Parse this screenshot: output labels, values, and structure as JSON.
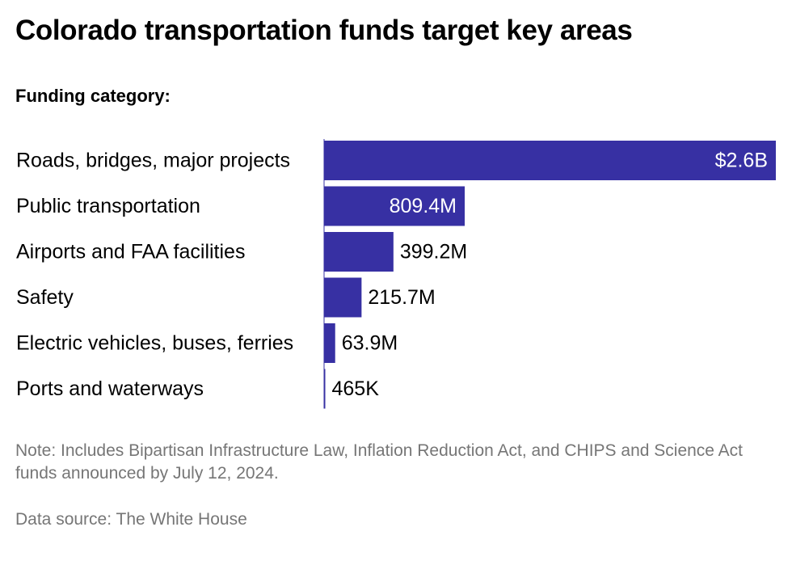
{
  "title": "Colorado transportation funds target key areas",
  "subtitle": "Funding category:",
  "note": "Note: Includes Bipartisan Infrastructure Law, Inflation Reduction Act, and CHIPS and Science Act funds announced by July 12, 2024.",
  "source": "Data source: The White House",
  "colors": {
    "bar": "#3730a3",
    "label_inside": "#ffffff",
    "label_outside": "#000000",
    "muted_text": "#767676"
  },
  "chart_data": {
    "type": "bar",
    "orientation": "horizontal",
    "categories": [
      "Roads, bridges, major projects",
      "Public transportation",
      "Airports and FAA facilities",
      "Safety",
      "Electric vehicles, buses, ferries",
      "Ports and waterways"
    ],
    "values": [
      2600000000,
      809400000,
      399200000,
      215700000,
      63900000,
      465000
    ],
    "value_labels": [
      "$2.6B",
      "809.4M",
      "399.2M",
      "215.7M",
      "63.9M",
      "465K"
    ],
    "title": "Colorado transportation funds target key areas",
    "xlabel": "",
    "ylabel": "Funding category:",
    "grid": false,
    "legend": "none"
  }
}
